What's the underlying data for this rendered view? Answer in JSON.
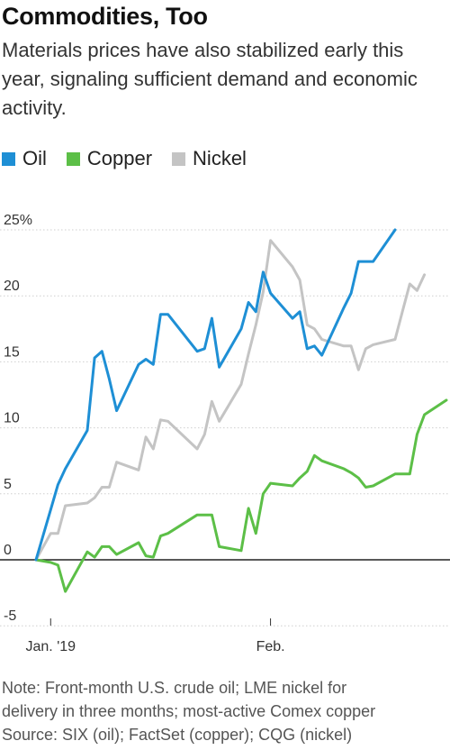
{
  "title": "Commodities, Too",
  "subtitle": "Materials prices have also stabilized early this year, signaling sufficient demand and economic activity.",
  "legend": [
    {
      "label": "Oil",
      "color": "#1e8fd5"
    },
    {
      "label": "Copper",
      "color": "#5cbf47"
    },
    {
      "label": "Nickel",
      "color": "#c4c4c4"
    }
  ],
  "notes": [
    "Note: Front-month U.S. crude oil; LME nickel for",
    "delivery in three months; most-active Comex copper",
    "Source: SIX (oil); FactSet (copper); CQG (nickel)"
  ],
  "chart_data": {
    "type": "line",
    "x_ticks": [
      "Jan. '19",
      "Feb."
    ],
    "y_ticks": [
      "25%",
      "20",
      "15",
      "10",
      "5",
      "0",
      "-5"
    ],
    "ylim": [
      -5,
      25
    ],
    "grid": true,
    "legend_position": "top-left",
    "x": [
      "2018-12-31",
      "2019-01-02",
      "2019-01-03",
      "2019-01-04",
      "2019-01-07",
      "2019-01-08",
      "2019-01-09",
      "2019-01-10",
      "2019-01-11",
      "2019-01-14",
      "2019-01-15",
      "2019-01-16",
      "2019-01-17",
      "2019-01-18",
      "2019-01-22",
      "2019-01-23",
      "2019-01-24",
      "2019-01-25",
      "2019-01-28",
      "2019-01-29",
      "2019-01-30",
      "2019-01-31",
      "2019-02-01",
      "2019-02-04",
      "2019-02-05",
      "2019-02-06",
      "2019-02-07",
      "2019-02-08",
      "2019-02-11",
      "2019-02-12",
      "2019-02-13",
      "2019-02-14",
      "2019-02-15",
      "2019-02-18",
      "2019-02-19",
      "2019-02-20",
      "2019-02-21",
      "2019-02-22",
      "2019-02-25"
    ],
    "series": [
      {
        "name": "Oil",
        "color": "#1e8fd5",
        "values": [
          0,
          3.8,
          5.7,
          6.9,
          9.8,
          15.3,
          15.8,
          13.7,
          11.3,
          14.8,
          15.2,
          14.8,
          18.6,
          18.6,
          15.8,
          16.0,
          18.3,
          14.6,
          17.5,
          19.5,
          18.8,
          21.8,
          20.2,
          18.3,
          18.8,
          16.0,
          16.2,
          15.5,
          19.1,
          20.2,
          22.6,
          22.6,
          22.6,
          25.0,
          null,
          null,
          null,
          null,
          null
        ]
      },
      {
        "name": "Copper",
        "color": "#5cbf47",
        "values": [
          0,
          -0.2,
          -0.4,
          -2.4,
          0.6,
          0.2,
          1.0,
          1.0,
          0.4,
          1.3,
          0.3,
          0.2,
          1.8,
          2.0,
          3.4,
          3.4,
          3.4,
          1.0,
          0.7,
          3.9,
          2.0,
          5.0,
          5.8,
          5.6,
          6.2,
          6.7,
          7.9,
          7.5,
          6.9,
          6.6,
          6.2,
          5.5,
          5.6,
          6.5,
          6.5,
          6.5,
          9.5,
          11.0,
          12.1
        ]
      },
      {
        "name": "Nickel",
        "color": "#c4c4c4",
        "values": [
          0,
          2.0,
          2.0,
          4.1,
          4.3,
          4.7,
          5.5,
          5.5,
          7.4,
          6.8,
          9.3,
          8.4,
          10.6,
          10.5,
          8.4,
          9.5,
          12.0,
          10.5,
          13.3,
          15.6,
          17.8,
          20.3,
          24.2,
          22.2,
          21.2,
          17.8,
          17.5,
          16.7,
          16.2,
          16.2,
          14.4,
          16.0,
          16.3,
          16.7,
          18.8,
          20.9,
          20.4,
          21.6,
          null
        ]
      }
    ]
  }
}
